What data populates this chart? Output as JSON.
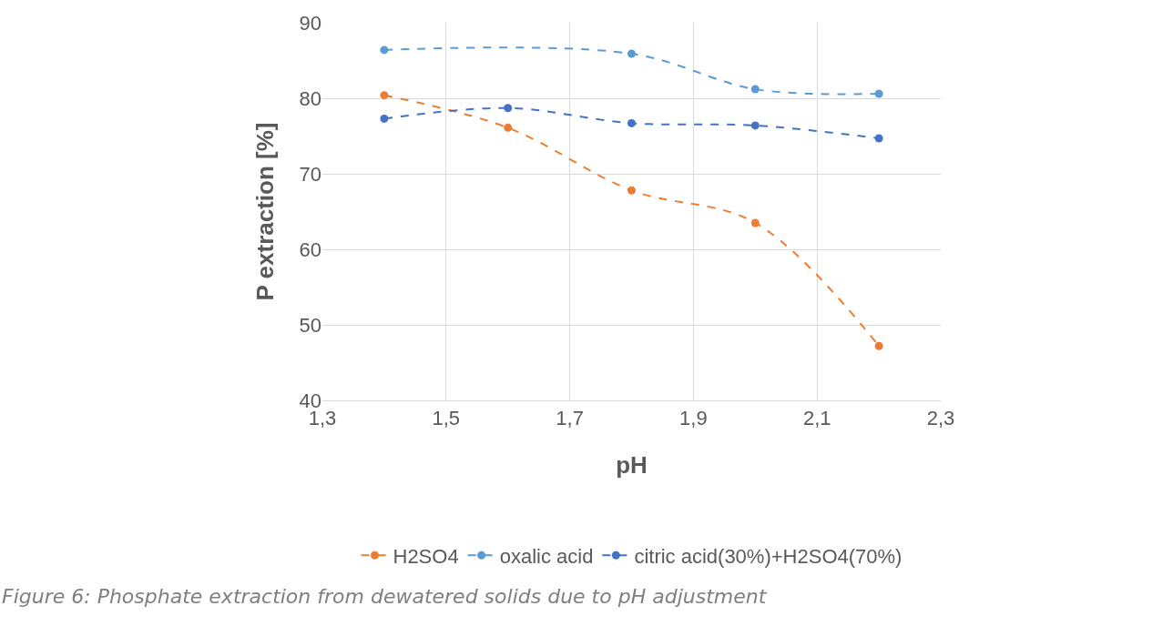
{
  "chart_data": {
    "type": "line",
    "xlabel": "pH",
    "ylabel": "P extraction [%]",
    "xlim": [
      1.3,
      2.3
    ],
    "xticks": [
      {
        "value": 1.3,
        "label": "1,3"
      },
      {
        "value": 1.5,
        "label": "1,5"
      },
      {
        "value": 1.7,
        "label": "1,7"
      },
      {
        "value": 1.9,
        "label": "1,9"
      },
      {
        "value": 2.1,
        "label": "2,1"
      },
      {
        "value": 2.3,
        "label": "2,3"
      }
    ],
    "ylim": [
      40,
      90
    ],
    "yticks": [
      40,
      50,
      60,
      70,
      80,
      90
    ],
    "grid": true,
    "legend": "bottom",
    "marker": "circle",
    "line_style": "dashed",
    "series": [
      {
        "name": "H2SO4",
        "color": "#ed7d31",
        "x": [
          1.4,
          1.6,
          1.8,
          2.0,
          2.2
        ],
        "values": [
          80.4,
          76.1,
          67.8,
          63.5,
          47.2
        ]
      },
      {
        "name": "oxalic acid",
        "color": "#5b9bd5",
        "x": [
          1.4,
          1.8,
          2.0,
          2.2
        ],
        "values": [
          86.4,
          85.9,
          81.2,
          80.6
        ]
      },
      {
        "name": "citric acid(30%)+H2SO4(70%)",
        "color": "#4472c4",
        "x": [
          1.4,
          1.6,
          1.8,
          2.0,
          2.2
        ],
        "values": [
          77.3,
          78.7,
          76.7,
          76.4,
          74.7
        ]
      }
    ],
    "annotations": [
      "Figure 6: Phosphate extraction from dewatered solids due to pH adjustment"
    ]
  }
}
